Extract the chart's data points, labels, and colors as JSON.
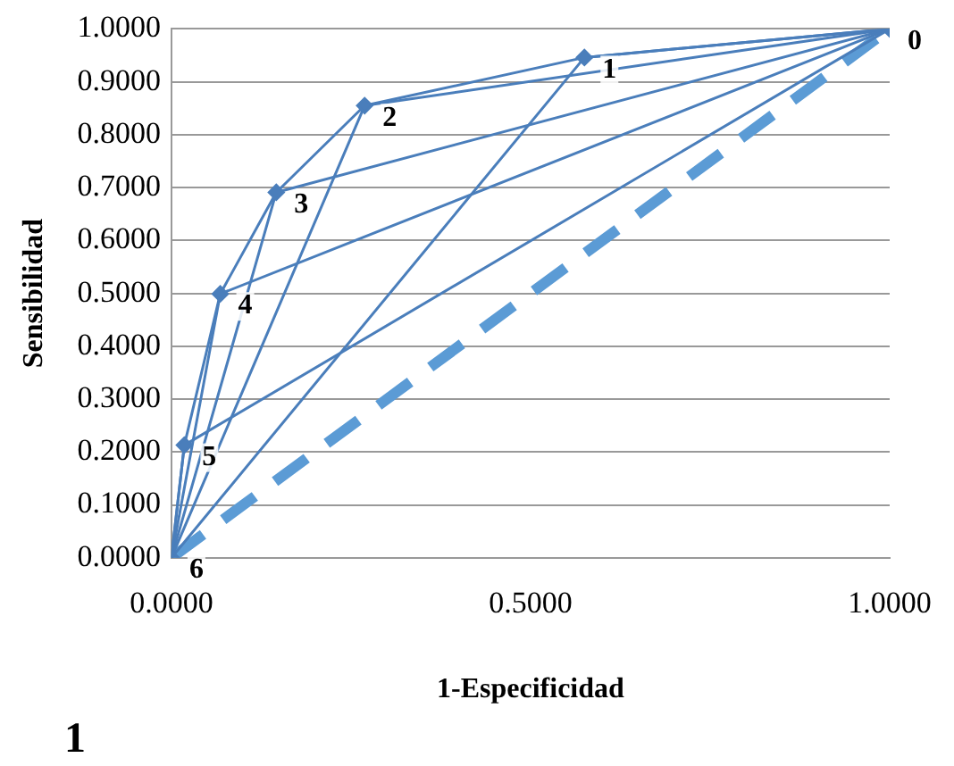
{
  "chart_data": {
    "type": "line",
    "xlabel": "1-Especificidad",
    "ylabel": "Sensibilidad",
    "annotations": [
      "1",
      {
        "text": "6",
        "x": 0,
        "y": 0
      },
      {
        "text": "5",
        "x": 0.018,
        "y": 0.213
      },
      {
        "text": "4",
        "x": 0.068,
        "y": 0.499
      },
      {
        "text": "3",
        "x": 0.146,
        "y": 0.691
      },
      {
        "text": "2",
        "x": 0.269,
        "y": 0.855
      },
      {
        "text": "1",
        "x": 0.575,
        "y": 0.946
      },
      {
        "text": "0",
        "x": 1,
        "y": 1
      }
    ],
    "xlim": [
      0,
      1
    ],
    "ylim": [
      0,
      1
    ],
    "xticks": [
      {
        "value": 0,
        "label": "0.0000"
      },
      {
        "value": 0.5,
        "label": "0.5000"
      },
      {
        "value": 1,
        "label": "1.0000"
      }
    ],
    "yticks": [
      {
        "value": 0,
        "label": "0.0000"
      },
      {
        "value": 0.1,
        "label": "0.1000"
      },
      {
        "value": 0.2,
        "label": "0.2000"
      },
      {
        "value": 0.3,
        "label": "0.3000"
      },
      {
        "value": 0.4,
        "label": "0.4000"
      },
      {
        "value": 0.5,
        "label": "0.5000"
      },
      {
        "value": 0.6,
        "label": "0.6000"
      },
      {
        "value": 0.7,
        "label": "0.7000"
      },
      {
        "value": 0.8,
        "label": "0.8000"
      },
      {
        "value": 0.9,
        "label": "0.9000"
      },
      {
        "value": 1,
        "label": "1.0000"
      }
    ],
    "grid": "y",
    "legend": false,
    "series": [
      {
        "color": "#4a7ebb",
        "x": [
          0,
          0.018,
          0.068,
          0.146,
          0.269,
          0.575,
          1
        ],
        "values": [
          0,
          0.213,
          0.499,
          0.691,
          0.855,
          0.946,
          1
        ],
        "line_style": "solid",
        "marker": "diamond"
      },
      {
        "color": "#4a7ebb",
        "x": [
          0,
          0.018,
          1
        ],
        "values": [
          0,
          0.213,
          1
        ],
        "line_style": "solid",
        "marker": "none"
      },
      {
        "color": "#4a7ebb",
        "x": [
          0,
          0.068,
          1
        ],
        "values": [
          0,
          0.499,
          1
        ],
        "line_style": "solid",
        "marker": "none"
      },
      {
        "color": "#4a7ebb",
        "x": [
          0,
          0.146,
          1
        ],
        "values": [
          0,
          0.691,
          1
        ],
        "line_style": "solid",
        "marker": "none"
      },
      {
        "color": "#4a7ebb",
        "x": [
          0,
          0.269,
          1
        ],
        "values": [
          0,
          0.855,
          1
        ],
        "line_style": "solid",
        "marker": "none"
      },
      {
        "color": "#4a7ebb",
        "x": [
          0,
          0.575,
          1
        ],
        "values": [
          0,
          0.946,
          1
        ],
        "line_style": "solid",
        "marker": "none"
      },
      {
        "color": "#5b9bd5",
        "x": [
          0,
          1
        ],
        "values": [
          0,
          1
        ],
        "line_style": "dashed",
        "marker": "none"
      }
    ]
  }
}
